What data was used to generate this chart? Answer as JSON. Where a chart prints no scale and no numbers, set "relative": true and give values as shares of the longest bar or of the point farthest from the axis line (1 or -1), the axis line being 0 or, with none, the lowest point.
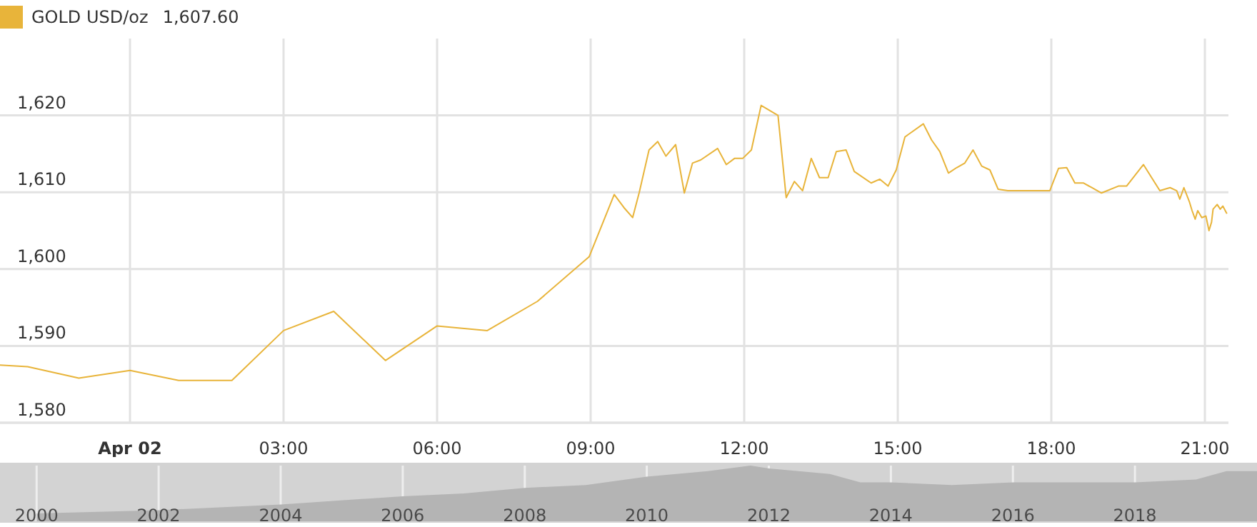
{
  "chart_data": [
    {
      "type": "line",
      "legend": "top left",
      "grid": true,
      "annotations": [
        "1,607.60"
      ],
      "x": [
        -2.54,
        -2.0,
        -1.0,
        0,
        0.95,
        1.99,
        3.0,
        3.98,
        4.99,
        6.0,
        6.98,
        7.96,
        8.97,
        9.46,
        9.65,
        9.82,
        9.95,
        10.14,
        10.31,
        10.47,
        10.66,
        10.83,
        10.99,
        11.15,
        11.48,
        11.65,
        11.81,
        11.97,
        12.14,
        12.33,
        12.66,
        12.82,
        12.98,
        13.14,
        13.31,
        13.47,
        13.64,
        13.8,
        13.99,
        14.15,
        14.48,
        14.65,
        14.81,
        14.97,
        15.14,
        15.5,
        15.66,
        15.82,
        15.99,
        16.15,
        16.31,
        16.47,
        16.64,
        16.8,
        16.96,
        17.15,
        17.97,
        18.14,
        18.3,
        18.46,
        18.63,
        18.79,
        18.98,
        19.31,
        19.47,
        19.8,
        20.12,
        20.32,
        20.45,
        20.51,
        20.59,
        20.7,
        20.75,
        20.81,
        20.86,
        20.94,
        21.02,
        21.08,
        21.13,
        21.16,
        21.24,
        21.3,
        21.35,
        21.43
      ],
      "series": [
        {
          "name": "GOLD USD/oz",
          "color": "#e8b43a",
          "values": [
            1587.5,
            1587.3,
            1585.8,
            1586.8,
            1585.5,
            1585.5,
            1592.0,
            1594.5,
            1588.1,
            1592.6,
            1592.0,
            1595.8,
            1601.6,
            1609.7,
            1608.0,
            1606.7,
            1610.0,
            1615.5,
            1616.6,
            1614.7,
            1616.2,
            1609.9,
            1613.8,
            1614.2,
            1615.7,
            1613.6,
            1614.4,
            1614.4,
            1615.5,
            1621.3,
            1620.0,
            1609.3,
            1611.4,
            1610.2,
            1614.4,
            1611.9,
            1611.9,
            1615.3,
            1615.5,
            1612.7,
            1611.2,
            1611.7,
            1610.8,
            1612.9,
            1617.2,
            1618.9,
            1616.8,
            1615.3,
            1612.5,
            1613.2,
            1613.8,
            1615.5,
            1613.4,
            1612.9,
            1610.4,
            1610.2,
            1610.2,
            1613.1,
            1613.2,
            1611.2,
            1611.2,
            1610.6,
            1609.9,
            1610.8,
            1610.8,
            1613.6,
            1610.2,
            1610.6,
            1610.2,
            1609.1,
            1610.6,
            1608.7,
            1607.6,
            1606.5,
            1607.6,
            1606.7,
            1606.9,
            1605.0,
            1606.1,
            1607.8,
            1608.4,
            1607.8,
            1608.2,
            1607.2
          ]
        }
      ],
      "xlim": [
        -2.54,
        21.46
      ],
      "xticks": [
        {
          "value": 0,
          "label": "Apr 02"
        },
        {
          "value": 3,
          "label": "03:00"
        },
        {
          "value": 6,
          "label": "06:00"
        },
        {
          "value": 9,
          "label": "09:00"
        },
        {
          "value": 12,
          "label": "12:00"
        },
        {
          "value": 15,
          "label": "15:00"
        },
        {
          "value": 18,
          "label": "18:00"
        },
        {
          "value": 21,
          "label": "21:00"
        }
      ],
      "ylim": [
        1580,
        1630
      ],
      "yticks": [
        {
          "value": 1580,
          "label": "1,580"
        },
        {
          "value": 1590,
          "label": "1,590"
        },
        {
          "value": 1600,
          "label": "1,600"
        },
        {
          "value": 1610,
          "label": "1,610"
        },
        {
          "value": 1620,
          "label": "1,620"
        }
      ]
    },
    {
      "type": "area",
      "relative": true,
      "grid": "x",
      "color": "#b4b4b4",
      "x": [
        2000,
        2002,
        2004,
        2006,
        2007,
        2008,
        2009,
        2010,
        2011,
        2011.7,
        2012,
        2013,
        2013.5,
        2014,
        2015,
        2016,
        2017,
        2018,
        2019,
        2019.5,
        2020
      ],
      "values": [
        0.14,
        0.2,
        0.3,
        0.45,
        0.5,
        0.6,
        0.65,
        0.8,
        0.9,
        1,
        0.95,
        0.85,
        0.7,
        0.7,
        0.65,
        0.7,
        0.7,
        0.7,
        0.75,
        0.9,
        0.9
      ],
      "xlim": [
        1999.4,
        2020
      ],
      "xticks": [
        2000,
        2002,
        2004,
        2006,
        2008,
        2010,
        2012,
        2014,
        2016,
        2018
      ]
    }
  ]
}
